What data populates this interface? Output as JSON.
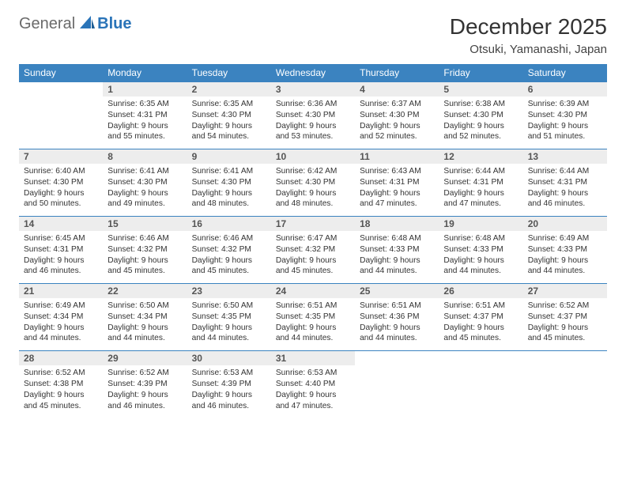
{
  "brand": {
    "part1": "General",
    "part2": "Blue"
  },
  "title": "December 2025",
  "location": "Otsuki, Yamanashi, Japan",
  "colors": {
    "header_bg": "#3b83c0",
    "header_text": "#ffffff",
    "daynum_bg": "#ededed",
    "row_border": "#3b83c0",
    "brand_grey": "#6a6a6a",
    "brand_blue": "#2a74b8",
    "page_bg": "#ffffff"
  },
  "dayHeaders": [
    "Sunday",
    "Monday",
    "Tuesday",
    "Wednesday",
    "Thursday",
    "Friday",
    "Saturday"
  ],
  "weeks": [
    [
      null,
      {
        "n": "1",
        "sr": "6:35 AM",
        "ss": "4:31 PM",
        "dl": "9 hours and 55 minutes."
      },
      {
        "n": "2",
        "sr": "6:35 AM",
        "ss": "4:30 PM",
        "dl": "9 hours and 54 minutes."
      },
      {
        "n": "3",
        "sr": "6:36 AM",
        "ss": "4:30 PM",
        "dl": "9 hours and 53 minutes."
      },
      {
        "n": "4",
        "sr": "6:37 AM",
        "ss": "4:30 PM",
        "dl": "9 hours and 52 minutes."
      },
      {
        "n": "5",
        "sr": "6:38 AM",
        "ss": "4:30 PM",
        "dl": "9 hours and 52 minutes."
      },
      {
        "n": "6",
        "sr": "6:39 AM",
        "ss": "4:30 PM",
        "dl": "9 hours and 51 minutes."
      }
    ],
    [
      {
        "n": "7",
        "sr": "6:40 AM",
        "ss": "4:30 PM",
        "dl": "9 hours and 50 minutes."
      },
      {
        "n": "8",
        "sr": "6:41 AM",
        "ss": "4:30 PM",
        "dl": "9 hours and 49 minutes."
      },
      {
        "n": "9",
        "sr": "6:41 AM",
        "ss": "4:30 PM",
        "dl": "9 hours and 48 minutes."
      },
      {
        "n": "10",
        "sr": "6:42 AM",
        "ss": "4:30 PM",
        "dl": "9 hours and 48 minutes."
      },
      {
        "n": "11",
        "sr": "6:43 AM",
        "ss": "4:31 PM",
        "dl": "9 hours and 47 minutes."
      },
      {
        "n": "12",
        "sr": "6:44 AM",
        "ss": "4:31 PM",
        "dl": "9 hours and 47 minutes."
      },
      {
        "n": "13",
        "sr": "6:44 AM",
        "ss": "4:31 PM",
        "dl": "9 hours and 46 minutes."
      }
    ],
    [
      {
        "n": "14",
        "sr": "6:45 AM",
        "ss": "4:31 PM",
        "dl": "9 hours and 46 minutes."
      },
      {
        "n": "15",
        "sr": "6:46 AM",
        "ss": "4:32 PM",
        "dl": "9 hours and 45 minutes."
      },
      {
        "n": "16",
        "sr": "6:46 AM",
        "ss": "4:32 PM",
        "dl": "9 hours and 45 minutes."
      },
      {
        "n": "17",
        "sr": "6:47 AM",
        "ss": "4:32 PM",
        "dl": "9 hours and 45 minutes."
      },
      {
        "n": "18",
        "sr": "6:48 AM",
        "ss": "4:33 PM",
        "dl": "9 hours and 44 minutes."
      },
      {
        "n": "19",
        "sr": "6:48 AM",
        "ss": "4:33 PM",
        "dl": "9 hours and 44 minutes."
      },
      {
        "n": "20",
        "sr": "6:49 AM",
        "ss": "4:33 PM",
        "dl": "9 hours and 44 minutes."
      }
    ],
    [
      {
        "n": "21",
        "sr": "6:49 AM",
        "ss": "4:34 PM",
        "dl": "9 hours and 44 minutes."
      },
      {
        "n": "22",
        "sr": "6:50 AM",
        "ss": "4:34 PM",
        "dl": "9 hours and 44 minutes."
      },
      {
        "n": "23",
        "sr": "6:50 AM",
        "ss": "4:35 PM",
        "dl": "9 hours and 44 minutes."
      },
      {
        "n": "24",
        "sr": "6:51 AM",
        "ss": "4:35 PM",
        "dl": "9 hours and 44 minutes."
      },
      {
        "n": "25",
        "sr": "6:51 AM",
        "ss": "4:36 PM",
        "dl": "9 hours and 44 minutes."
      },
      {
        "n": "26",
        "sr": "6:51 AM",
        "ss": "4:37 PM",
        "dl": "9 hours and 45 minutes."
      },
      {
        "n": "27",
        "sr": "6:52 AM",
        "ss": "4:37 PM",
        "dl": "9 hours and 45 minutes."
      }
    ],
    [
      {
        "n": "28",
        "sr": "6:52 AM",
        "ss": "4:38 PM",
        "dl": "9 hours and 45 minutes."
      },
      {
        "n": "29",
        "sr": "6:52 AM",
        "ss": "4:39 PM",
        "dl": "9 hours and 46 minutes."
      },
      {
        "n": "30",
        "sr": "6:53 AM",
        "ss": "4:39 PM",
        "dl": "9 hours and 46 minutes."
      },
      {
        "n": "31",
        "sr": "6:53 AM",
        "ss": "4:40 PM",
        "dl": "9 hours and 47 minutes."
      },
      null,
      null,
      null
    ]
  ],
  "labels": {
    "sunrise": "Sunrise:",
    "sunset": "Sunset:",
    "daylight": "Daylight:"
  }
}
